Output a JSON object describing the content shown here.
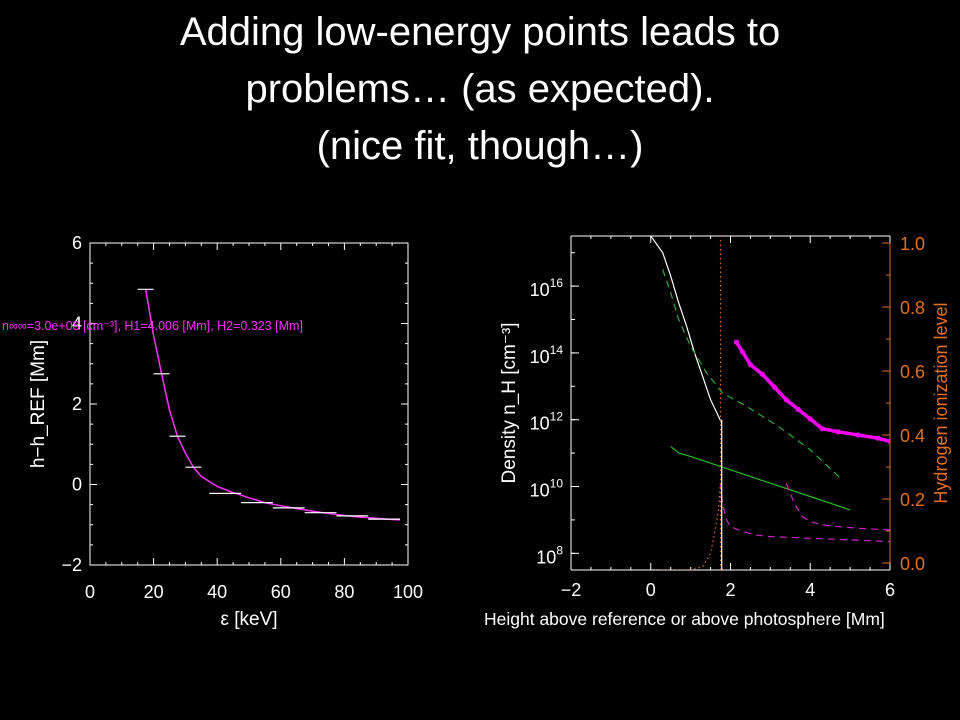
{
  "slide": {
    "title_lines": [
      "Adding low-energy points leads to",
      "problems… (as expected).",
      "(nice fit, though…)"
    ]
  },
  "chart_data": [
    {
      "type": "scatter",
      "xlabel": "ε [keV]",
      "ylabel": "h−h_REF [Mm]",
      "xlim": [
        0,
        100
      ],
      "ylim": [
        -2,
        6
      ],
      "xticks": [
        "0",
        "20",
        "40",
        "60",
        "80",
        "100"
      ],
      "yticks": [
        "−2",
        "0",
        "2",
        "4",
        "6"
      ],
      "annotation": "n∞∞=3.0e+08 [cm⁻³], H1=4.006 [Mm], H2=0.323 [Mm]",
      "colors": {
        "frame": "#ffffff",
        "fit": "#ff33ff",
        "data": "#ffffff"
      },
      "series": [
        {
          "points": [
            {
              "x": 17.5,
              "y": 4.85,
              "xerr": 2.5
            },
            {
              "x": 22.5,
              "y": 2.75,
              "xerr": 2.5
            },
            {
              "x": 27.5,
              "y": 1.2,
              "xerr": 2.5
            },
            {
              "x": 32.5,
              "y": 0.43,
              "xerr": 2.5
            },
            {
              "x": 42.5,
              "y": -0.22,
              "xerr": 5
            },
            {
              "x": 52.5,
              "y": -0.45,
              "xerr": 5
            },
            {
              "x": 62.5,
              "y": -0.58,
              "xerr": 5
            },
            {
              "x": 72.5,
              "y": -0.7,
              "xerr": 5
            },
            {
              "x": 82.5,
              "y": -0.78,
              "xerr": 5
            },
            {
              "x": 92.5,
              "y": -0.86,
              "xerr": 5
            }
          ]
        }
      ],
      "fit": {
        "x": [
          17.5,
          20,
          22.5,
          25,
          27.5,
          30,
          32.5,
          35,
          40,
          45,
          50,
          55,
          60,
          65,
          70,
          75,
          80,
          85,
          90,
          95,
          97.5
        ],
        "y": [
          4.85,
          3.7,
          2.75,
          1.85,
          1.2,
          0.78,
          0.43,
          0.2,
          -0.05,
          -0.2,
          -0.33,
          -0.45,
          -0.53,
          -0.6,
          -0.66,
          -0.72,
          -0.77,
          -0.81,
          -0.84,
          -0.87,
          -0.88
        ]
      }
    },
    {
      "type": "line",
      "xlabel": "Height above reference or above photosphere [Mm]",
      "ylabel": "Density n_H [cm⁻³]",
      "y2label": "Hydrogen ionization level",
      "xlim": [
        -2,
        6
      ],
      "ylim_log10": [
        7.5,
        17.5
      ],
      "y2lim": [
        0,
        1
      ],
      "xticks": [
        "−2",
        "0",
        "2",
        "4",
        "6"
      ],
      "yticks": [
        {
          "base": "10",
          "exp": "8"
        },
        {
          "base": "10",
          "exp": "10"
        },
        {
          "base": "10",
          "exp": "12"
        },
        {
          "base": "10",
          "exp": "14"
        },
        {
          "base": "10",
          "exp": "16"
        }
      ],
      "y2ticks": [
        "0.0",
        "0.2",
        "0.4",
        "0.6",
        "0.8",
        "1.0"
      ],
      "colors": {
        "frame": "#ffffff",
        "right_axis": "#e07020"
      },
      "series": [
        {
          "style": "solid",
          "color": "#ffffff",
          "x": [
            0,
            0.3,
            0.5,
            0.7,
            0.9,
            1.1,
            1.3,
            1.5,
            1.7,
            1.78
          ],
          "y_log10": [
            17.5,
            17.0,
            16.3,
            15.5,
            14.8,
            14.0,
            13.3,
            12.6,
            12.1,
            11.9
          ]
        },
        {
          "style": "dashed",
          "color": "#33aa33",
          "x": [
            0.3,
            0.5,
            0.7,
            1.0,
            1.4,
            1.8,
            2.4,
            3.2,
            4.0,
            4.8
          ],
          "y_log10": [
            16.5,
            15.8,
            15.0,
            14.2,
            13.4,
            12.8,
            12.4,
            11.8,
            11.1,
            10.2
          ]
        },
        {
          "style": "solid",
          "color": "#22bb22",
          "x": [
            0.5,
            0.7,
            1.0,
            2.0,
            3.0,
            4.0,
            5.0
          ],
          "y_log10": [
            11.2,
            11.0,
            10.9,
            10.5,
            10.1,
            9.7,
            9.3
          ]
        },
        {
          "style": "solid",
          "color": "#ff00ff",
          "thick": true,
          "axis": "y2",
          "x": [
            2.15,
            2.3,
            2.5,
            2.8,
            3.1,
            3.4,
            3.7,
            4.0,
            4.3,
            4.7,
            5.2,
            5.7,
            6.0
          ],
          "y": [
            0.69,
            0.66,
            0.62,
            0.59,
            0.55,
            0.51,
            0.48,
            0.45,
            0.42,
            0.41,
            0.4,
            0.39,
            0.38
          ]
        },
        {
          "style": "dashed",
          "color": "#cc22cc",
          "x": [
            1.75,
            1.8,
            1.9,
            2.0,
            2.2,
            2.6,
            3.0,
            4.0,
            5.0,
            6.0
          ],
          "y_log10": [
            10.1,
            9.5,
            9.0,
            8.8,
            8.7,
            8.55,
            8.5,
            8.45,
            8.4,
            8.35
          ]
        },
        {
          "style": "dashed",
          "color": "#cc22cc",
          "x": [
            3.4,
            3.6,
            3.8,
            4.0,
            4.3,
            4.7,
            5.2,
            5.7,
            6.0
          ],
          "y_log10": [
            10.1,
            9.5,
            9.1,
            8.95,
            8.85,
            8.8,
            8.75,
            8.72,
            8.7
          ]
        },
        {
          "style": "dotted",
          "color": "#e07020",
          "x": [
            0.3,
            1.0,
            1.3,
            1.5,
            1.6,
            1.7,
            1.75
          ],
          "y_log10": [
            7.5,
            7.5,
            7.6,
            8.0,
            8.6,
            9.3,
            10.1
          ]
        },
        {
          "style": "dotted",
          "color": "#e07020",
          "vline": 1.75
        },
        {
          "style": "solid",
          "color": "#ffffff",
          "vline": 1.78,
          "from_log10": 7.5,
          "to_log10": 12.0
        }
      ]
    }
  ]
}
